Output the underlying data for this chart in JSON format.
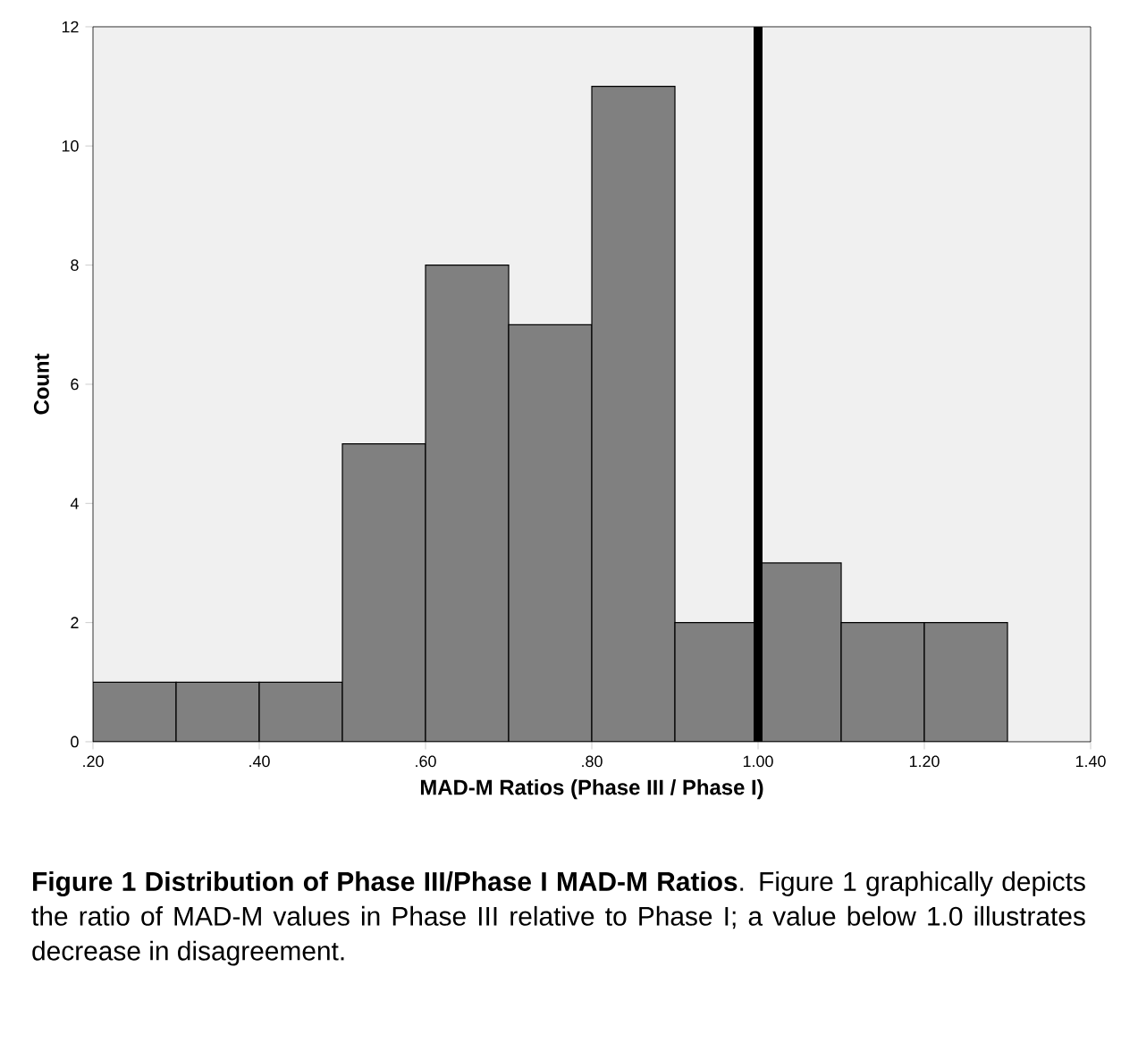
{
  "chart_data": {
    "type": "histogram",
    "xlabel": "MAD-M Ratios (Phase III / Phase I)",
    "ylabel": "Count",
    "bins": [
      0.2,
      0.3,
      0.4,
      0.5,
      0.6,
      0.7,
      0.8,
      0.9,
      1.0,
      1.1,
      1.2,
      1.3
    ],
    "values": [
      1,
      1,
      1,
      5,
      8,
      7,
      11,
      2,
      3,
      2,
      2
    ],
    "color": "#808080",
    "xlim": [
      0.2,
      1.4
    ],
    "xticks": [
      {
        "value": 0.2,
        "label": ".20"
      },
      {
        "value": 0.4,
        "label": ".40"
      },
      {
        "value": 0.6,
        "label": ".60"
      },
      {
        "value": 0.8,
        "label": ".80"
      },
      {
        "value": 1.0,
        "label": "1.00"
      },
      {
        "value": 1.2,
        "label": "1.20"
      },
      {
        "value": 1.4,
        "label": "1.40"
      }
    ],
    "ylim": [
      0,
      12
    ],
    "yticks": [
      0,
      2,
      4,
      6,
      8,
      10,
      12
    ],
    "ref_lines": [
      {
        "axis": "x",
        "value": 1.0,
        "color": "#000000"
      }
    ],
    "annotations": [
      "**Figure 1 Distribution of Phase III/Phase I MAD-M Ratios**. Figure 1 graphically depicts the ratio of MAD-M values in Phase III relative to Phase I; a value below 1.0 illustrates decrease in disagreement."
    ]
  }
}
